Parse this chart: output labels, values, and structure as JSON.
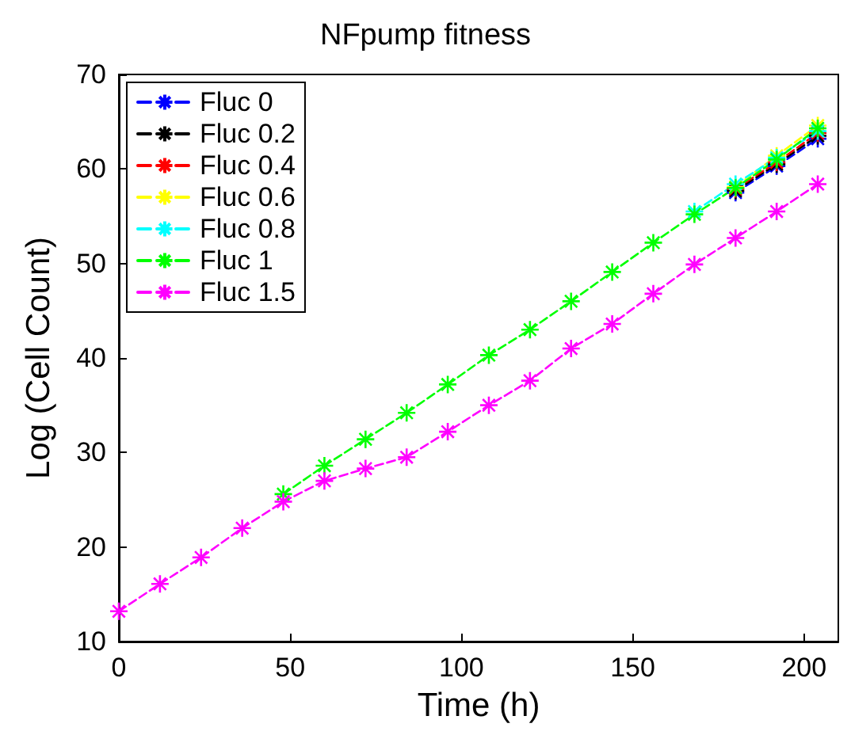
{
  "chart_data": {
    "type": "line",
    "title": "NFpump fitness",
    "xlabel": "Time (h)",
    "ylabel": "Log (Cell Count)",
    "x": [
      0,
      12,
      24,
      36,
      48,
      60,
      72,
      84,
      96,
      108,
      120,
      132,
      144,
      156,
      168,
      180,
      192,
      204
    ],
    "xlim": [
      0,
      210
    ],
    "xticks": [
      0,
      50,
      100,
      150,
      200
    ],
    "ylim": [
      10,
      70
    ],
    "yticks": [
      10,
      20,
      30,
      40,
      50,
      60,
      70
    ],
    "grid": false,
    "legend": "top left",
    "marker": "cross",
    "line_style": "dashed",
    "series": [
      {
        "name": "Fluc 0",
        "color": "#0000ff",
        "values": [
          null,
          null,
          null,
          null,
          null,
          null,
          null,
          null,
          null,
          null,
          null,
          null,
          null,
          null,
          null,
          57.5,
          60.3,
          63.2
        ]
      },
      {
        "name": "Fluc 0.2",
        "color": "#000000",
        "values": [
          null,
          null,
          null,
          null,
          null,
          null,
          null,
          null,
          null,
          null,
          null,
          null,
          null,
          null,
          null,
          57.7,
          60.5,
          63.5
        ]
      },
      {
        "name": "Fluc 0.4",
        "color": "#ff0000",
        "values": [
          null,
          null,
          null,
          null,
          null,
          null,
          null,
          null,
          null,
          null,
          null,
          null,
          null,
          null,
          null,
          57.9,
          60.7,
          63.8
        ]
      },
      {
        "name": "Fluc 0.6",
        "color": "#ffff00",
        "values": [
          null,
          null,
          null,
          null,
          null,
          null,
          null,
          null,
          null,
          null,
          null,
          null,
          null,
          null,
          null,
          58.1,
          61.4,
          64.6
        ]
      },
      {
        "name": "Fluc 0.8",
        "color": "#00ffff",
        "values": [
          null,
          null,
          null,
          null,
          null,
          null,
          null,
          null,
          null,
          null,
          null,
          null,
          null,
          null,
          55.5,
          58.4,
          61.2,
          64.0
        ]
      },
      {
        "name": "Fluc 1",
        "color": "#00ff00",
        "values": [
          null,
          null,
          null,
          null,
          25.6,
          28.6,
          31.4,
          34.2,
          37.2,
          40.3,
          43.0,
          46.0,
          49.1,
          52.2,
          55.2,
          58.0,
          61.0,
          64.3
        ]
      },
      {
        "name": "Fluc 1.5",
        "color": "#ff00ff",
        "values": [
          13.2,
          16.1,
          18.9,
          22.0,
          24.8,
          27.0,
          28.3,
          29.5,
          32.2,
          35.0,
          37.6,
          41.0,
          43.6,
          46.8,
          49.9,
          52.7,
          55.5,
          58.4
        ]
      }
    ]
  }
}
